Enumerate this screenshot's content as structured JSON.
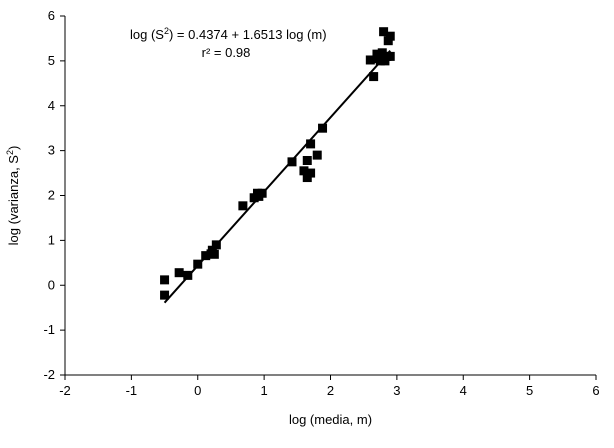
{
  "chart_data": {
    "type": "scatter",
    "title": "",
    "xlabel": "log (media, m)",
    "ylabel_main": "log (varianza, S",
    "ylabel_sup": "2",
    "ylabel_tail": ")",
    "xlim": [
      -2,
      6
    ],
    "ylim": [
      -2,
      6
    ],
    "xticks": [
      -2,
      -1,
      0,
      1,
      2,
      3,
      4,
      5,
      6
    ],
    "yticks": [
      -2,
      -1,
      0,
      1,
      2,
      3,
      4,
      5,
      6
    ],
    "grid": false,
    "legend": "none",
    "marker": "square",
    "marker_color": "#000000",
    "line_color": "#000000",
    "series": [
      {
        "type": "scatter",
        "points": [
          [
            -0.5,
            0.12
          ],
          [
            -0.5,
            -0.22
          ],
          [
            -0.28,
            0.28
          ],
          [
            -0.15,
            0.22
          ],
          [
            0.0,
            0.47
          ],
          [
            0.12,
            0.66
          ],
          [
            0.2,
            0.7
          ],
          [
            0.22,
            0.78
          ],
          [
            0.25,
            0.69
          ],
          [
            0.28,
            0.9
          ],
          [
            0.68,
            1.77
          ],
          [
            0.85,
            1.95
          ],
          [
            0.9,
            2.05
          ],
          [
            0.92,
            1.98
          ],
          [
            0.97,
            2.05
          ],
          [
            1.42,
            2.75
          ],
          [
            1.6,
            2.55
          ],
          [
            1.65,
            2.4
          ],
          [
            1.65,
            2.78
          ],
          [
            1.7,
            3.15
          ],
          [
            1.7,
            2.5
          ],
          [
            1.8,
            2.9
          ],
          [
            1.88,
            3.5
          ],
          [
            2.6,
            5.02
          ],
          [
            2.65,
            4.65
          ],
          [
            2.7,
            5.15
          ],
          [
            2.72,
            5.05
          ],
          [
            2.75,
            5.0
          ],
          [
            2.78,
            5.18
          ],
          [
            2.8,
            5.65
          ],
          [
            2.82,
            5.0
          ],
          [
            2.85,
            5.1
          ],
          [
            2.87,
            5.45
          ],
          [
            2.9,
            5.55
          ],
          [
            2.9,
            5.1
          ]
        ]
      },
      {
        "type": "line",
        "intercept": 0.4374,
        "slope": 1.6513,
        "x_range": [
          -0.5,
          2.9
        ]
      }
    ],
    "annotations": {
      "equation_pre": "log (S",
      "equation_sup": "2",
      "equation_post": ") = 0.4374 + 1.6513 log (m)",
      "r2": "r² = 0.98"
    }
  }
}
